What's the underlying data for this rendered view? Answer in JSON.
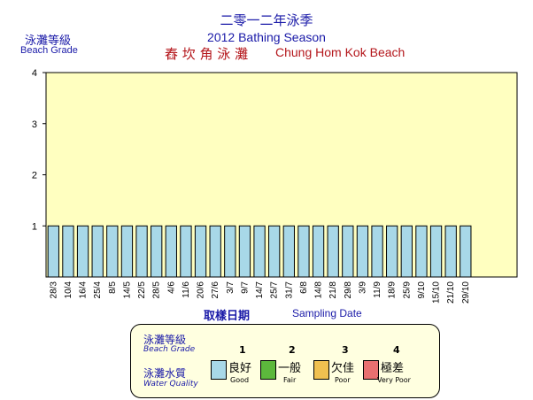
{
  "header": {
    "title_zh": "二零一二年泳季",
    "title_en": "2012 Bathing Season",
    "beach_zh": "舂 坎 角 泳 灘",
    "beach_en": "Chung Hom Kok Beach",
    "ylabel_zh": "泳灘等級",
    "ylabel_en": "Beach Grade"
  },
  "axis_titles": {
    "x_zh": "取樣日期",
    "x_en": "Sampling Date"
  },
  "chart_data": {
    "type": "bar",
    "title": "2012 Bathing Season",
    "ylabel": "Beach Grade",
    "xlabel": "Sampling Date",
    "ylim": [
      0,
      4
    ],
    "yticks": [
      1,
      2,
      3,
      4
    ],
    "grid": false,
    "background": "#ffffc0",
    "bar_color": "#a8d8e8",
    "categories": [
      "28/3",
      "10/4",
      "16/4",
      "25/4",
      "8/5",
      "14/5",
      "22/5",
      "28/5",
      "4/6",
      "11/6",
      "20/6",
      "27/6",
      "3/7",
      "9/7",
      "14/7",
      "25/7",
      "31/7",
      "6/8",
      "14/8",
      "21/8",
      "29/8",
      "3/9",
      "11/9",
      "18/9",
      "25/9",
      "9/10",
      "15/10",
      "21/10",
      "29/10"
    ],
    "values": [
      1,
      1,
      1,
      1,
      1,
      1,
      1,
      1,
      1,
      1,
      1,
      1,
      1,
      1,
      1,
      1,
      1,
      1,
      1,
      1,
      1,
      1,
      1,
      1,
      1,
      1,
      1,
      1,
      1
    ],
    "slots": 32
  },
  "legend": {
    "grade_zh": "泳灘等級",
    "grade_en": "Beach Grade",
    "quality_zh": "泳灘水質",
    "quality_en": "Water Quality",
    "items": [
      {
        "grade": "1",
        "zh": "良好",
        "en": "Good",
        "color": "#a8d8e8"
      },
      {
        "grade": "2",
        "zh": "一般",
        "en": "Fair",
        "color": "#5cb83c"
      },
      {
        "grade": "3",
        "zh": "欠佳",
        "en": "Poor",
        "color": "#f0c050"
      },
      {
        "grade": "4",
        "zh": "極差",
        "en": "Very Poor",
        "color": "#e87070"
      }
    ]
  }
}
